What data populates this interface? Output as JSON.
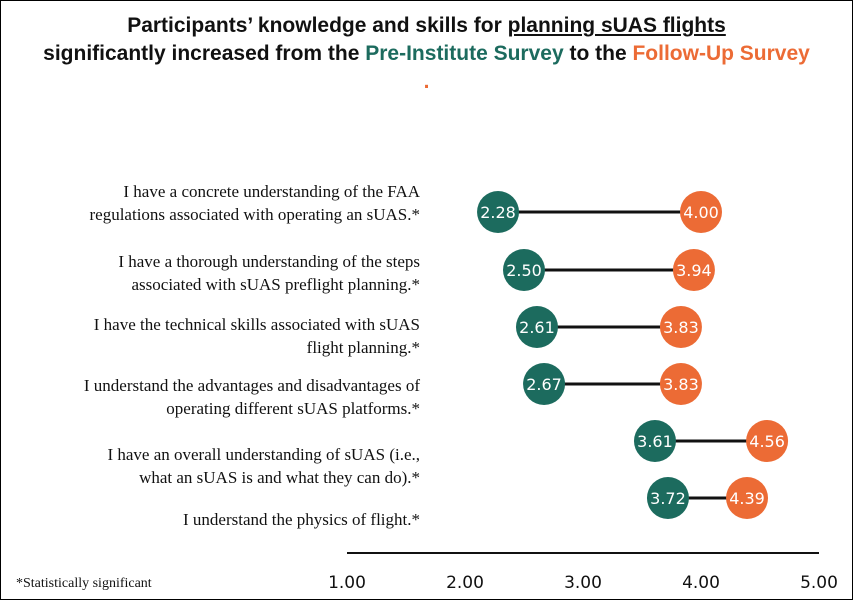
{
  "title": {
    "part1": "Participants’ knowledge and skills for ",
    "part2": "planning sUAS flights",
    "part3": "significantly increased from the ",
    "part4": "Pre-Institute Survey",
    "part5": " to the ",
    "part6": "Follow-Up Survey",
    "part7": "."
  },
  "footnote": "*Statistically significant",
  "colors": {
    "pre": "#1c6b5e",
    "post": "#ec6b35",
    "line": "#111111"
  },
  "chart_data": {
    "type": "dumbbell",
    "xlim": [
      1.0,
      5.0
    ],
    "x_ticks": [
      "1.00",
      "2.00",
      "3.00",
      "4.00",
      "5.00"
    ],
    "series": [
      {
        "name": "Pre-Institute Survey",
        "values": [
          2.28,
          2.5,
          2.61,
          2.67,
          3.61,
          3.72
        ]
      },
      {
        "name": "Follow-Up Survey",
        "values": [
          4.0,
          3.94,
          3.83,
          3.83,
          4.56,
          4.39
        ]
      }
    ],
    "categories": [
      {
        "line1": "I have a concrete understanding of the FAA",
        "line2": "regulations associated with operating an sUAS.*"
      },
      {
        "line1": "I have a thorough understanding of the steps",
        "line2": "associated with sUAS preflight planning.*"
      },
      {
        "line1": "I have the technical skills associated with sUAS",
        "line2": "flight planning.*"
      },
      {
        "line1": "I understand the advantages and disadvantages of",
        "line2": "operating different sUAS platforms.*"
      },
      {
        "line1": "I have an overall understanding of sUAS (i.e.,",
        "line2": "what an sUAS is and what they can do).*"
      },
      {
        "line1": "I understand the physics of flight.*",
        "line2": ""
      }
    ],
    "grid": false,
    "legend": "none"
  }
}
